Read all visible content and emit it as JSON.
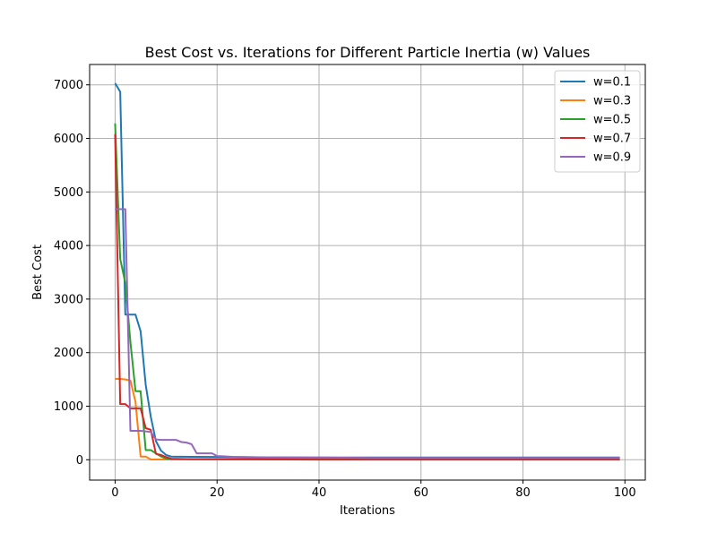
{
  "chart_data": {
    "type": "line",
    "title": "Best Cost vs. Iterations for Different Particle Inertia (w) Values",
    "xlabel": "Iterations",
    "ylabel": "Best Cost",
    "xlim": [
      -5,
      104
    ],
    "ylim": [
      -380,
      7380
    ],
    "xticks": [
      0,
      20,
      40,
      60,
      80,
      100
    ],
    "yticks": [
      0,
      1000,
      2000,
      3000,
      4000,
      5000,
      6000,
      7000
    ],
    "xtick_labels": [
      "0",
      "20",
      "40",
      "60",
      "80",
      "100"
    ],
    "ytick_labels": [
      "0",
      "1000",
      "2000",
      "3000",
      "4000",
      "5000",
      "6000",
      "7000"
    ],
    "grid": true,
    "legend_position": "top-right",
    "series": [
      {
        "name": "w=0.1",
        "color": "#1f77b4",
        "points": [
          [
            0,
            7030
          ],
          [
            1,
            6870
          ],
          [
            2,
            2710
          ],
          [
            3,
            2710
          ],
          [
            4,
            2710
          ],
          [
            5,
            2400
          ],
          [
            6,
            1400
          ],
          [
            7,
            800
          ],
          [
            8,
            350
          ],
          [
            9,
            170
          ],
          [
            10,
            90
          ],
          [
            11,
            60
          ],
          [
            15,
            55
          ],
          [
            20,
            52
          ],
          [
            30,
            45
          ],
          [
            50,
            42
          ],
          [
            70,
            42
          ],
          [
            99,
            42
          ]
        ]
      },
      {
        "name": "w=0.3",
        "color": "#ff7f0e",
        "points": [
          [
            0,
            1510
          ],
          [
            1,
            1510
          ],
          [
            2,
            1500
          ],
          [
            3,
            1480
          ],
          [
            4,
            1080
          ],
          [
            5,
            60
          ],
          [
            6,
            60
          ],
          [
            7,
            5
          ],
          [
            10,
            5
          ],
          [
            99,
            5
          ]
        ]
      },
      {
        "name": "w=0.5",
        "color": "#2ca02c",
        "points": [
          [
            0,
            6280
          ],
          [
            1,
            3750
          ],
          [
            2,
            3300
          ],
          [
            3,
            2200
          ],
          [
            4,
            1280
          ],
          [
            5,
            1280
          ],
          [
            6,
            180
          ],
          [
            7,
            180
          ],
          [
            8,
            120
          ],
          [
            9,
            60
          ],
          [
            10,
            25
          ],
          [
            11,
            15
          ],
          [
            20,
            12
          ],
          [
            99,
            12
          ]
        ]
      },
      {
        "name": "w=0.7",
        "color": "#d62728",
        "points": [
          [
            0,
            6080
          ],
          [
            1,
            1040
          ],
          [
            2,
            1040
          ],
          [
            3,
            960
          ],
          [
            4,
            960
          ],
          [
            5,
            960
          ],
          [
            6,
            590
          ],
          [
            7,
            560
          ],
          [
            8,
            110
          ],
          [
            9,
            90
          ],
          [
            10,
            50
          ],
          [
            11,
            20
          ],
          [
            15,
            10
          ],
          [
            40,
            3
          ],
          [
            99,
            3
          ]
        ]
      },
      {
        "name": "w=0.9",
        "color": "#9467bd",
        "points": [
          [
            0,
            4680
          ],
          [
            1,
            4680
          ],
          [
            2,
            4680
          ],
          [
            3,
            540
          ],
          [
            4,
            540
          ],
          [
            5,
            540
          ],
          [
            6,
            530
          ],
          [
            7,
            520
          ],
          [
            8,
            380
          ],
          [
            9,
            370
          ],
          [
            10,
            370
          ],
          [
            11,
            370
          ],
          [
            12,
            370
          ],
          [
            13,
            330
          ],
          [
            14,
            320
          ],
          [
            15,
            290
          ],
          [
            16,
            120
          ],
          [
            17,
            120
          ],
          [
            18,
            120
          ],
          [
            19,
            120
          ],
          [
            20,
            70
          ],
          [
            21,
            65
          ],
          [
            23,
            55
          ],
          [
            30,
            45
          ],
          [
            50,
            35
          ],
          [
            99,
            35
          ]
        ]
      }
    ]
  }
}
